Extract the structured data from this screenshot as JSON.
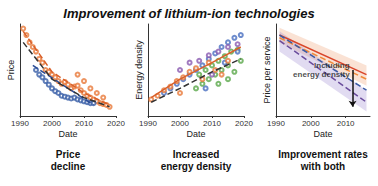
{
  "title": "Improvement of lithium-ion technologies",
  "chart_data": [
    {
      "type": "scatter",
      "title": "Price\ndecline",
      "xlabel": "Date",
      "ylabel": "Price",
      "xlim": [
        1990,
        2020
      ],
      "xticks": [
        1990,
        2000,
        2010,
        2020
      ],
      "ylim": [
        0,
        100
      ],
      "tick_labels": "x",
      "grid": false,
      "series": [
        {
          "type": "scatter",
          "color": "#e8793a",
          "marker": "open_circle",
          "x": [
            1991,
            1992,
            1993,
            1994,
            1995,
            1996,
            1997,
            1998,
            1999,
            2000,
            2001,
            2002,
            2003,
            2004,
            2005,
            2006,
            2007,
            2008,
            2009,
            2010,
            2011,
            2012,
            2013,
            2014,
            2015,
            2016,
            2017,
            2018,
            2008,
            2010,
            2012,
            2014,
            2016
          ],
          "values": [
            95,
            88,
            80,
            75,
            70,
            62,
            58,
            50,
            48,
            45,
            42,
            38,
            35,
            37,
            34,
            30,
            32,
            33,
            28,
            25,
            22,
            20,
            18,
            16,
            14,
            13,
            12,
            10,
            45,
            38,
            30,
            25,
            20
          ]
        },
        {
          "type": "scatter",
          "color": "#3a5fa8",
          "marker": "open_circle",
          "x": [
            1995,
            1996,
            1997,
            1998,
            1999,
            2000,
            2001,
            2002,
            2003,
            2004,
            2005,
            2006,
            2007,
            2008,
            2009,
            2010,
            2011,
            2012,
            2013
          ],
          "values": [
            50,
            45,
            42,
            38,
            34,
            30,
            27,
            25,
            22,
            21,
            20,
            19,
            20,
            18,
            17,
            16,
            15,
            14,
            14
          ]
        },
        {
          "type": "line",
          "color": "#d9602a",
          "line_style": "dashed",
          "x": [
            1991,
            2000,
            2010,
            2018
          ],
          "values": [
            92,
            48,
            25,
            12
          ]
        },
        {
          "type": "line",
          "color": "#2c4d96",
          "line_style": "dashed",
          "x": [
            1994,
            2013
          ],
          "values": [
            55,
            12
          ]
        },
        {
          "type": "line",
          "color": "#333333",
          "line_style": "dashed",
          "x": [
            1991,
            2000,
            2010,
            2018
          ],
          "values": [
            80,
            40,
            20,
            10
          ]
        }
      ]
    },
    {
      "type": "scatter",
      "title": "Increased\nenergy density",
      "xlabel": "Date",
      "ylabel": "Energy density",
      "xlim": [
        1990,
        2020
      ],
      "xticks": [
        1990,
        2000,
        2010,
        2020
      ],
      "ylim": [
        0,
        100
      ],
      "tick_labels": "x",
      "grid": false,
      "series": [
        {
          "type": "scatter",
          "color": "#5aa84a",
          "marker": "open_circle",
          "x": [
            2005,
            2006,
            2007,
            2008,
            2009,
            2010,
            2011,
            2012,
            2013,
            2014,
            2015,
            2016,
            2017,
            2018,
            2019,
            2012,
            2015
          ],
          "values": [
            30,
            45,
            35,
            50,
            40,
            55,
            45,
            60,
            50,
            65,
            55,
            70,
            48,
            72,
            60,
            35,
            40
          ]
        },
        {
          "type": "scatter",
          "color": "#4a6fc0",
          "marker": "open_circle",
          "x": [
            1995,
            1997,
            1999,
            2001,
            2003,
            2005,
            2007,
            2009,
            2011,
            2013,
            2015,
            2017,
            2019,
            2008,
            2014,
            2018
          ],
          "values": [
            25,
            30,
            35,
            40,
            45,
            50,
            55,
            62,
            68,
            75,
            80,
            85,
            88,
            30,
            58,
            70
          ]
        },
        {
          "type": "scatter",
          "color": "#e8793a",
          "marker": "open_circle",
          "x": [
            1991,
            1993,
            1995,
            1997,
            1999,
            2001,
            2003,
            2005,
            2007,
            2009,
            2011,
            2013,
            2015,
            2000
          ],
          "values": [
            18,
            22,
            28,
            32,
            38,
            42,
            48,
            52,
            40,
            58,
            50,
            45,
            60,
            25
          ]
        },
        {
          "type": "scatter",
          "color": "#8a5ab0",
          "marker": "open_circle",
          "x": [
            2000,
            2003,
            2006,
            2009,
            2012,
            2015,
            2018,
            2010
          ],
          "values": [
            50,
            58,
            60,
            66,
            70,
            75,
            78,
            45
          ]
        },
        {
          "type": "line",
          "color": "#333333",
          "line_style": "dashed",
          "x": [
            1991,
            2000,
            2010,
            2019
          ],
          "values": [
            15,
            30,
            48,
            62
          ]
        },
        {
          "type": "line",
          "color": "#d9602a",
          "line_style": "solid",
          "x": [
            1991,
            2000,
            2010,
            2019
          ],
          "values": [
            20,
            40,
            58,
            75
          ]
        }
      ]
    },
    {
      "type": "line",
      "title": "Improvement rates\nwith both",
      "xlabel": "Date",
      "ylabel": "Price per service",
      "xlim": [
        1990,
        2017
      ],
      "xticks": [
        1990,
        2000,
        2010
      ],
      "ylim": [
        0,
        100
      ],
      "tick_labels": "x",
      "grid": false,
      "series": [
        {
          "type": "band",
          "color": "#f0a070",
          "x": [
            1991,
            2016
          ],
          "low": [
            80,
            33
          ],
          "high": [
            96,
            55
          ]
        },
        {
          "type": "band",
          "color": "#9a88d0",
          "x": [
            1991,
            2016
          ],
          "low": [
            70,
            5
          ],
          "high": [
            92,
            28
          ]
        },
        {
          "type": "line",
          "color": "#d9452a",
          "line_style": "solid",
          "x": [
            1991,
            2016
          ],
          "values": [
            88,
            45
          ]
        },
        {
          "type": "line",
          "color": "#f08a3a",
          "line_style": "dashed",
          "x": [
            1991,
            2016
          ],
          "values": [
            85,
            40
          ]
        },
        {
          "type": "line",
          "color": "#3b5ba5",
          "line_style": "dashed",
          "x": [
            1991,
            2016
          ],
          "values": [
            88,
            28
          ]
        },
        {
          "type": "line",
          "color": "#6a4c9c",
          "line_style": "dashed",
          "x": [
            1991,
            2016
          ],
          "values": [
            82,
            15
          ]
        }
      ],
      "annotations": [
        {
          "text": "Including\nenergy density",
          "x": 2012,
          "y": 50,
          "y_end": 10
        }
      ]
    }
  ]
}
